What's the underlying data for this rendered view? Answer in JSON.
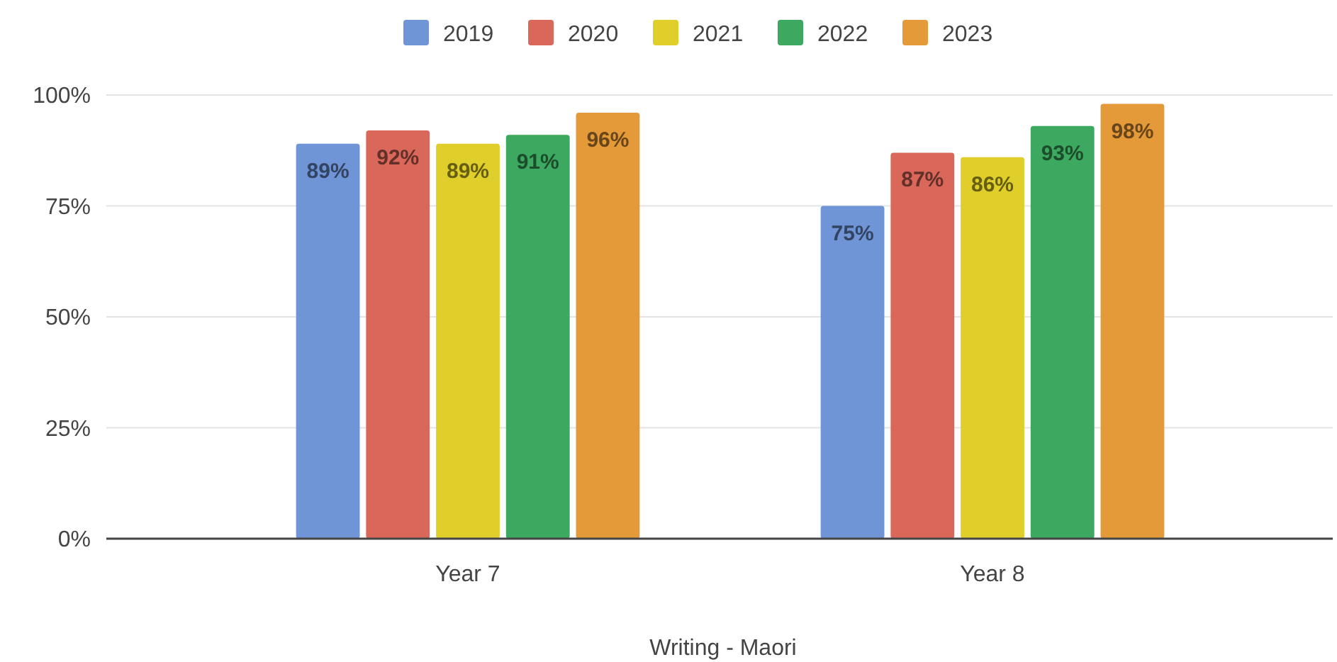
{
  "chart_data": {
    "type": "bar",
    "xlabel": "Writing - Maori",
    "categories": [
      "Year 7",
      "Year 8"
    ],
    "series": [
      {
        "name": "2019",
        "color": "#6f95d6",
        "values": [
          89,
          75
        ],
        "value_labels": [
          "89%",
          "75%"
        ]
      },
      {
        "name": "2020",
        "color": "#d9685a",
        "values": [
          92,
          87
        ],
        "value_labels": [
          "92%",
          "87%"
        ]
      },
      {
        "name": "2021",
        "color": "#e0cf2a",
        "values": [
          89,
          86
        ],
        "value_labels": [
          "89%",
          "86%"
        ]
      },
      {
        "name": "2022",
        "color": "#3da85f",
        "values": [
          91,
          93
        ],
        "value_labels": [
          "91%",
          "93%"
        ]
      },
      {
        "name": "2023",
        "color": "#e59a3a",
        "values": [
          96,
          98
        ],
        "value_labels": [
          "96%",
          "98%"
        ]
      }
    ],
    "ylim": [
      0,
      100
    ],
    "yticks": [
      {
        "value": 0,
        "label": "0%"
      },
      {
        "value": 25,
        "label": "25%"
      },
      {
        "value": 50,
        "label": "50%"
      },
      {
        "value": 75,
        "label": "75%"
      },
      {
        "value": 100,
        "label": "100%"
      }
    ],
    "grid": "y",
    "legend": "top"
  }
}
